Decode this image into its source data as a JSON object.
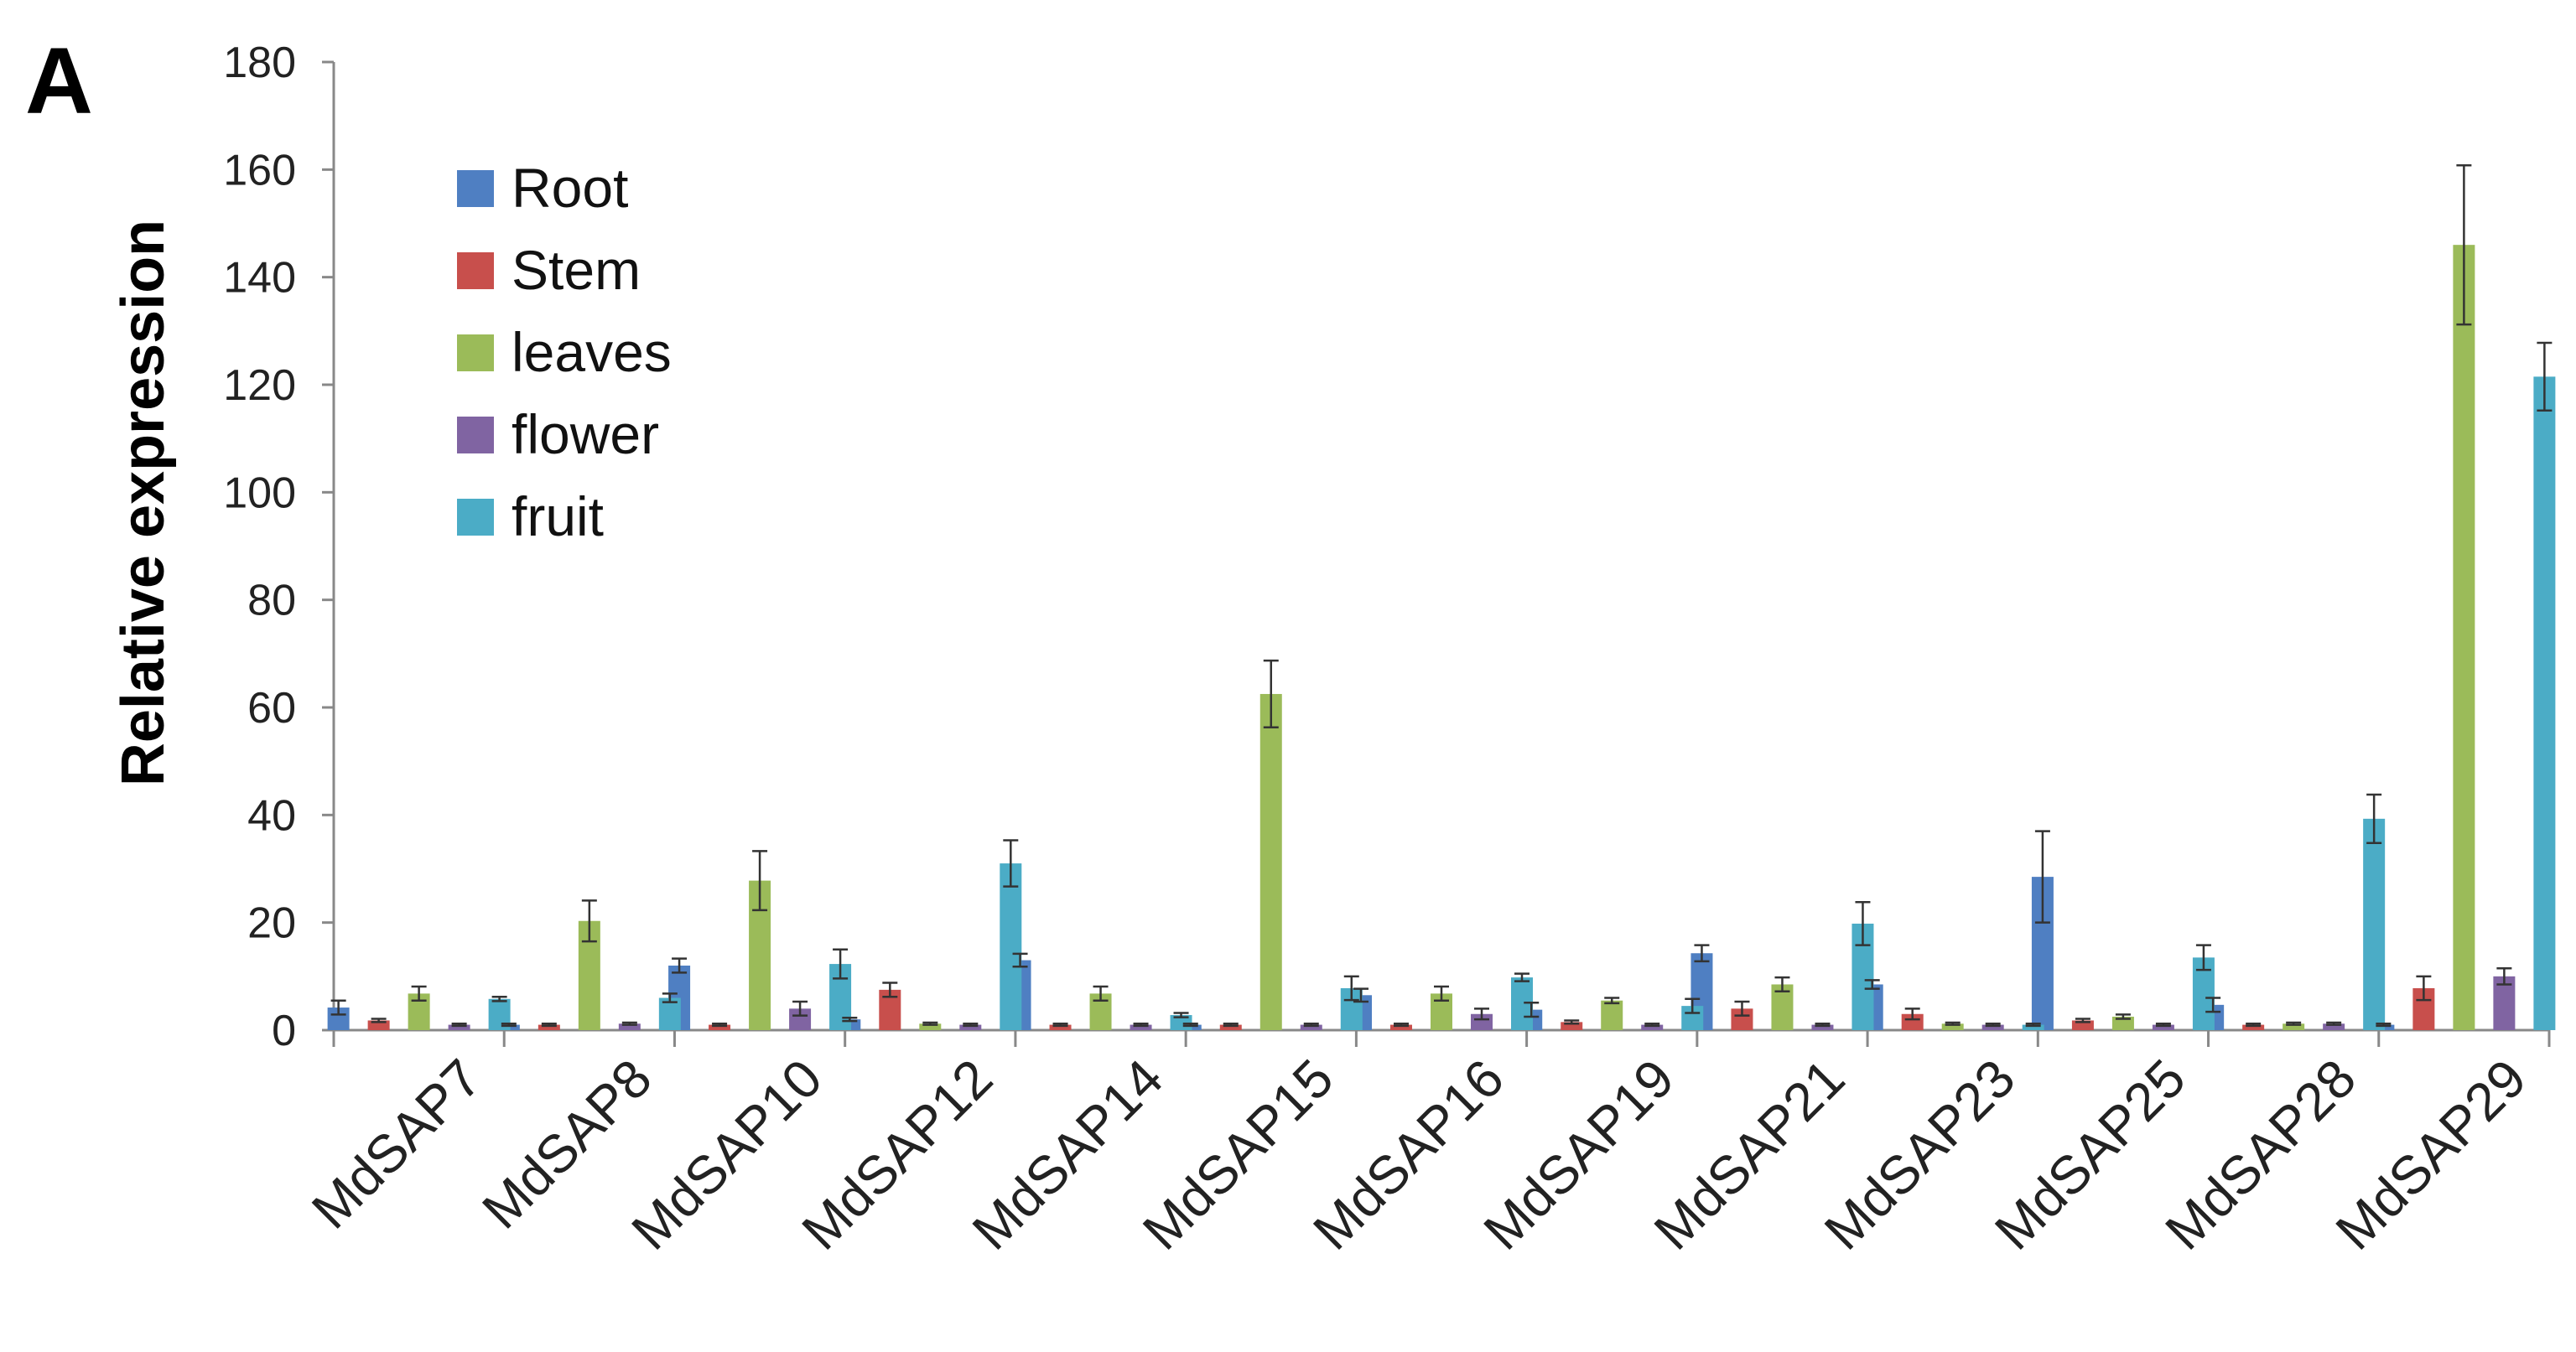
{
  "panel_label": "A",
  "chart_data": {
    "type": "bar",
    "title": "",
    "xlabel": "",
    "ylabel": "Relative expression",
    "ylim": [
      0,
      180
    ],
    "yticks": [
      "0",
      "20",
      "40",
      "60",
      "80",
      "100",
      "120",
      "140",
      "160",
      "180"
    ],
    "legend_placement": "top-left",
    "grid": false,
    "categories": [
      "MdSAP7",
      "MdSAP8",
      "MdSAP10",
      "MdSAP12",
      "MdSAP14",
      "MdSAP15",
      "MdSAP16",
      "MdSAP19",
      "MdSAP21",
      "MdSAP23",
      "MdSAP25",
      "MdSAP28",
      "MdSAP29"
    ],
    "series": [
      {
        "name": "Root",
        "color": "#4f7fc2",
        "values": [
          4.2,
          1.0,
          12.0,
          2.0,
          13.0,
          1.0,
          6.5,
          3.8,
          14.3,
          8.5,
          28.5,
          4.7,
          1.0
        ],
        "errors": [
          1.3,
          0.2,
          1.3,
          0.3,
          1.2,
          0.2,
          1.2,
          1.3,
          1.5,
          0.8,
          8.5,
          1.3,
          0.2
        ]
      },
      {
        "name": "Stem",
        "color": "#c84f4c",
        "values": [
          1.8,
          1.0,
          1.0,
          7.5,
          1.0,
          1.0,
          1.0,
          1.5,
          4.0,
          3.0,
          1.8,
          1.0,
          7.8
        ],
        "errors": [
          0.3,
          0.2,
          0.2,
          1.3,
          0.2,
          0.2,
          0.2,
          0.3,
          1.3,
          1.0,
          0.3,
          0.2,
          2.2
        ]
      },
      {
        "name": "leaves",
        "color": "#9bbb59",
        "values": [
          6.8,
          20.3,
          27.8,
          1.2,
          6.8,
          62.5,
          6.8,
          5.5,
          8.5,
          1.2,
          2.5,
          1.2,
          146.0
        ],
        "errors": [
          1.3,
          3.8,
          5.5,
          0.2,
          1.3,
          6.2,
          1.3,
          0.5,
          1.3,
          0.2,
          0.4,
          0.2,
          14.8
        ]
      },
      {
        "name": "flower",
        "color": "#8064a2",
        "values": [
          1.0,
          1.2,
          4.0,
          1.0,
          1.0,
          1.0,
          3.0,
          1.0,
          1.0,
          1.0,
          1.0,
          1.2,
          10.0
        ],
        "errors": [
          0.2,
          0.2,
          1.3,
          0.2,
          0.2,
          0.2,
          1.0,
          0.2,
          0.2,
          0.2,
          0.2,
          0.2,
          1.5
        ]
      },
      {
        "name": "fruit",
        "color": "#4bacc6",
        "values": [
          5.8,
          6.0,
          12.3,
          31.0,
          2.8,
          7.8,
          9.8,
          4.5,
          19.8,
          1.0,
          13.5,
          39.3,
          121.5
        ],
        "errors": [
          0.4,
          0.8,
          2.7,
          4.3,
          0.4,
          2.2,
          0.7,
          1.3,
          4.0,
          0.2,
          2.3,
          4.5,
          6.3
        ]
      }
    ]
  }
}
